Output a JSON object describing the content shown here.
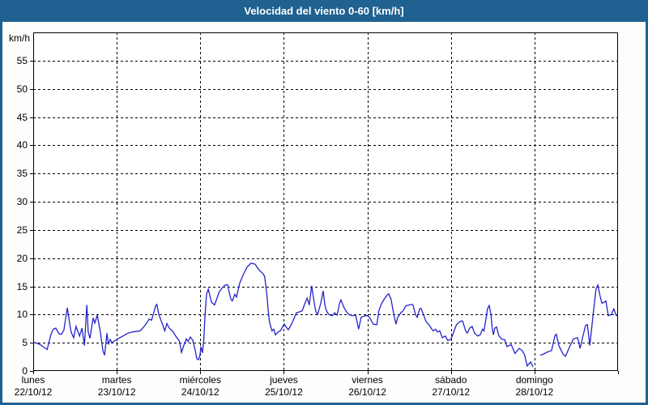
{
  "window": {
    "title": "Velocidad del viento 0-60 [km/h]"
  },
  "colors": {
    "titlebar_bg": "#1f6191",
    "frame_border": "#1f6191",
    "line": "#2323cc",
    "grid": "#000000",
    "plot_bg": "#ffffff",
    "label_text": "#000000",
    "title_text": "#ffffff"
  },
  "chart_data": {
    "type": "line",
    "title": "Velocidad del viento 0-60 [km/h]",
    "ylabel": "km/h",
    "ylim": [
      0,
      60
    ],
    "yticks": [
      0,
      5,
      10,
      15,
      20,
      25,
      30,
      35,
      40,
      45,
      50,
      55
    ],
    "x_unit": "hours_since_start",
    "xlim_hours": [
      0,
      168
    ],
    "grid": "dashed",
    "legend": "none",
    "days": [
      {
        "name": "lunes",
        "date": "22/10/12"
      },
      {
        "name": "martes",
        "date": "23/10/12"
      },
      {
        "name": "miércoles",
        "date": "24/10/12"
      },
      {
        "name": "jueves",
        "date": "25/10/12"
      },
      {
        "name": "viernes",
        "date": "26/10/12"
      },
      {
        "name": "sábado",
        "date": "27/10/12"
      },
      {
        "name": "domingo",
        "date": "28/10/12"
      }
    ],
    "series": [
      {
        "name": "velocidad del viento",
        "color": "#2323cc",
        "points": [
          [
            0,
            5.0
          ],
          [
            0.7,
            5.0
          ],
          [
            1.9,
            4.7
          ],
          [
            2.8,
            4.3
          ],
          [
            4,
            3.8
          ],
          [
            5.1,
            6.5
          ],
          [
            5.8,
            7.4
          ],
          [
            6.5,
            7.6
          ],
          [
            7.4,
            6.6
          ],
          [
            8.1,
            6.5
          ],
          [
            8.8,
            7.2
          ],
          [
            9.8,
            11.2
          ],
          [
            10.5,
            8.3
          ],
          [
            10.9,
            6.9
          ],
          [
            11.6,
            5.9
          ],
          [
            12.3,
            7.9
          ],
          [
            13.3,
            6.2
          ],
          [
            14,
            7.6
          ],
          [
            14.7,
            4.5
          ],
          [
            15.4,
            11.7
          ],
          [
            15.8,
            6.9
          ],
          [
            16.3,
            5.8
          ],
          [
            17.2,
            9.4
          ],
          [
            17.7,
            8.5
          ],
          [
            18.4,
            9.9
          ],
          [
            19.3,
            6.9
          ],
          [
            20,
            3.6
          ],
          [
            20.5,
            2.8
          ],
          [
            21.2,
            6.7
          ],
          [
            21.6,
            4.7
          ],
          [
            22.1,
            5.6
          ],
          [
            22.6,
            5.0
          ],
          [
            23.3,
            5.3
          ],
          [
            24,
            5.6
          ],
          [
            24.9,
            5.9
          ],
          [
            26.1,
            6.3
          ],
          [
            27.2,
            6.7
          ],
          [
            28.4,
            6.9
          ],
          [
            29.6,
            7.0
          ],
          [
            30.7,
            7.1
          ],
          [
            31.9,
            7.9
          ],
          [
            32.6,
            8.5
          ],
          [
            33.3,
            9.2
          ],
          [
            34,
            9.0
          ],
          [
            34.7,
            10.5
          ],
          [
            35.2,
            11.6
          ],
          [
            35.5,
            11.8
          ],
          [
            36.1,
            10.0
          ],
          [
            36.8,
            8.8
          ],
          [
            37.3,
            8.0
          ],
          [
            37.8,
            7.1
          ],
          [
            38.4,
            8.4
          ],
          [
            39.1,
            7.6
          ],
          [
            40,
            7.1
          ],
          [
            40.7,
            6.4
          ],
          [
            41.4,
            5.8
          ],
          [
            42,
            5.3
          ],
          [
            42.6,
            3.3
          ],
          [
            43.3,
            4.6
          ],
          [
            44,
            5.7
          ],
          [
            44.5,
            5.2
          ],
          [
            45.1,
            6.0
          ],
          [
            45.8,
            5.5
          ],
          [
            46.5,
            3.8
          ],
          [
            47,
            2.2
          ],
          [
            47.5,
            2.0
          ],
          [
            47.9,
            2.8
          ],
          [
            48.2,
            4.3
          ],
          [
            48.6,
            3.2
          ],
          [
            49,
            5.5
          ],
          [
            49.3,
            9.3
          ],
          [
            49.8,
            13.6
          ],
          [
            50.3,
            14.5
          ],
          [
            51.2,
            12.2
          ],
          [
            52.1,
            11.7
          ],
          [
            52.8,
            12.9
          ],
          [
            53.5,
            14.1
          ],
          [
            54.4,
            14.8
          ],
          [
            55.1,
            15.2
          ],
          [
            55.8,
            15.3
          ],
          [
            56.8,
            12.7
          ],
          [
            57.2,
            12.4
          ],
          [
            57.9,
            13.6
          ],
          [
            58.4,
            13.1
          ],
          [
            59.3,
            15.5
          ],
          [
            60.3,
            17.0
          ],
          [
            61.4,
            18.4
          ],
          [
            62.6,
            19.1
          ],
          [
            63.3,
            19.0
          ],
          [
            63.8,
            18.9
          ],
          [
            64.5,
            18.2
          ],
          [
            65.2,
            17.7
          ],
          [
            66.1,
            17.2
          ],
          [
            66.5,
            16.7
          ],
          [
            67.2,
            13.1
          ],
          [
            67.5,
            10.7
          ],
          [
            67.9,
            8.6
          ],
          [
            68.6,
            7.1
          ],
          [
            69.1,
            7.4
          ],
          [
            69.6,
            6.4
          ],
          [
            70.3,
            6.9
          ],
          [
            71,
            7.1
          ],
          [
            71.9,
            8.1
          ],
          [
            72.1,
            8.3
          ],
          [
            73.1,
            7.4
          ],
          [
            73.3,
            7.3
          ],
          [
            74.2,
            8.3
          ],
          [
            74.9,
            9.3
          ],
          [
            75.6,
            10.3
          ],
          [
            76.6,
            10.5
          ],
          [
            77.3,
            10.7
          ],
          [
            78,
            11.9
          ],
          [
            78.7,
            12.9
          ],
          [
            79.3,
            11.7
          ],
          [
            80,
            15.1
          ],
          [
            80.7,
            12.2
          ],
          [
            81.2,
            10.5
          ],
          [
            81.7,
            10.0
          ],
          [
            82.6,
            12.0
          ],
          [
            83.3,
            14.2
          ],
          [
            83.8,
            11.7
          ],
          [
            84.2,
            10.7
          ],
          [
            84.9,
            10.0
          ],
          [
            85.9,
            9.8
          ],
          [
            86.6,
            10.3
          ],
          [
            87.3,
            9.9
          ],
          [
            88,
            12.0
          ],
          [
            88.4,
            12.6
          ],
          [
            89.3,
            11.2
          ],
          [
            90,
            10.5
          ],
          [
            90.7,
            10.0
          ],
          [
            91.7,
            9.8
          ],
          [
            92.6,
            9.9
          ],
          [
            93.5,
            7.4
          ],
          [
            94.2,
            9.5
          ],
          [
            95.4,
            9.8
          ],
          [
            96,
            9.8
          ],
          [
            96.6,
            9.5
          ],
          [
            97.7,
            8.3
          ],
          [
            98.7,
            8.2
          ],
          [
            99.3,
            10.7
          ],
          [
            100,
            11.9
          ],
          [
            101,
            12.9
          ],
          [
            101.9,
            13.6
          ],
          [
            102.1,
            13.7
          ],
          [
            102.8,
            12.7
          ],
          [
            103.5,
            10.3
          ],
          [
            104.2,
            8.3
          ],
          [
            104.7,
            9.5
          ],
          [
            105.6,
            10.3
          ],
          [
            106.3,
            10.7
          ],
          [
            107,
            11.5
          ],
          [
            108,
            11.7
          ],
          [
            108.7,
            11.8
          ],
          [
            109.1,
            11.7
          ],
          [
            109.8,
            10.0
          ],
          [
            110.3,
            9.5
          ],
          [
            111,
            11.0
          ],
          [
            111.4,
            11.1
          ],
          [
            112.1,
            10.0
          ],
          [
            112.8,
            8.8
          ],
          [
            113.8,
            8.1
          ],
          [
            114.5,
            7.4
          ],
          [
            114.9,
            7.1
          ],
          [
            115.6,
            7.4
          ],
          [
            116.1,
            6.9
          ],
          [
            116.8,
            7.1
          ],
          [
            117.5,
            5.9
          ],
          [
            118.4,
            6.2
          ],
          [
            119.1,
            5.4
          ],
          [
            120,
            5.6
          ],
          [
            120.8,
            6.9
          ],
          [
            121.5,
            8.1
          ],
          [
            122.2,
            8.6
          ],
          [
            123.1,
            8.9
          ],
          [
            123.4,
            8.8
          ],
          [
            124.2,
            7.1
          ],
          [
            124.7,
            6.7
          ],
          [
            125.4,
            7.6
          ],
          [
            126.1,
            7.9
          ],
          [
            126.8,
            6.7
          ],
          [
            127.7,
            6.2
          ],
          [
            128.4,
            6.4
          ],
          [
            129.1,
            7.4
          ],
          [
            129.5,
            7.1
          ],
          [
            130.1,
            9.3
          ],
          [
            130.5,
            11.0
          ],
          [
            131,
            11.6
          ],
          [
            131.5,
            10.0
          ],
          [
            131.8,
            7.9
          ],
          [
            132.2,
            6.4
          ],
          [
            132.6,
            7.6
          ],
          [
            133.1,
            7.8
          ],
          [
            133.8,
            6.2
          ],
          [
            134.7,
            5.6
          ],
          [
            135.4,
            5.6
          ],
          [
            136.1,
            4.3
          ],
          [
            137.3,
            4.7
          ],
          [
            138.4,
            3.1
          ],
          [
            139.6,
            4.0
          ],
          [
            140.5,
            3.6
          ],
          [
            141.2,
            2.8
          ],
          [
            141.9,
            0.9
          ],
          [
            142.9,
            1.6
          ],
          [
            143.6,
            0.7
          ],
          [
            144.6,
            null
          ],
          [
            145.7,
            2.8
          ],
          [
            146.6,
            3.0
          ],
          [
            147.8,
            3.4
          ],
          [
            148.9,
            3.6
          ],
          [
            149.9,
            6.3
          ],
          [
            150.3,
            6.5
          ],
          [
            151,
            4.5
          ],
          [
            152.2,
            3.0
          ],
          [
            152.9,
            2.6
          ],
          [
            154.1,
            4.3
          ],
          [
            155.2,
            5.7
          ],
          [
            156.4,
            5.9
          ],
          [
            157.1,
            4.0
          ],
          [
            157.8,
            5.9
          ],
          [
            158.7,
            8.1
          ],
          [
            159.2,
            8.2
          ],
          [
            159.9,
            4.5
          ],
          [
            160.8,
            9.8
          ],
          [
            161.7,
            14.6
          ],
          [
            162.2,
            15.2
          ],
          [
            162.9,
            13.1
          ],
          [
            163.4,
            12.0
          ],
          [
            164.1,
            12.2
          ],
          [
            164.5,
            12.4
          ],
          [
            165.2,
            9.8
          ],
          [
            166.1,
            10.0
          ],
          [
            166.8,
            11.0
          ],
          [
            167.5,
            9.8
          ],
          [
            168,
            10.0
          ]
        ]
      }
    ]
  }
}
